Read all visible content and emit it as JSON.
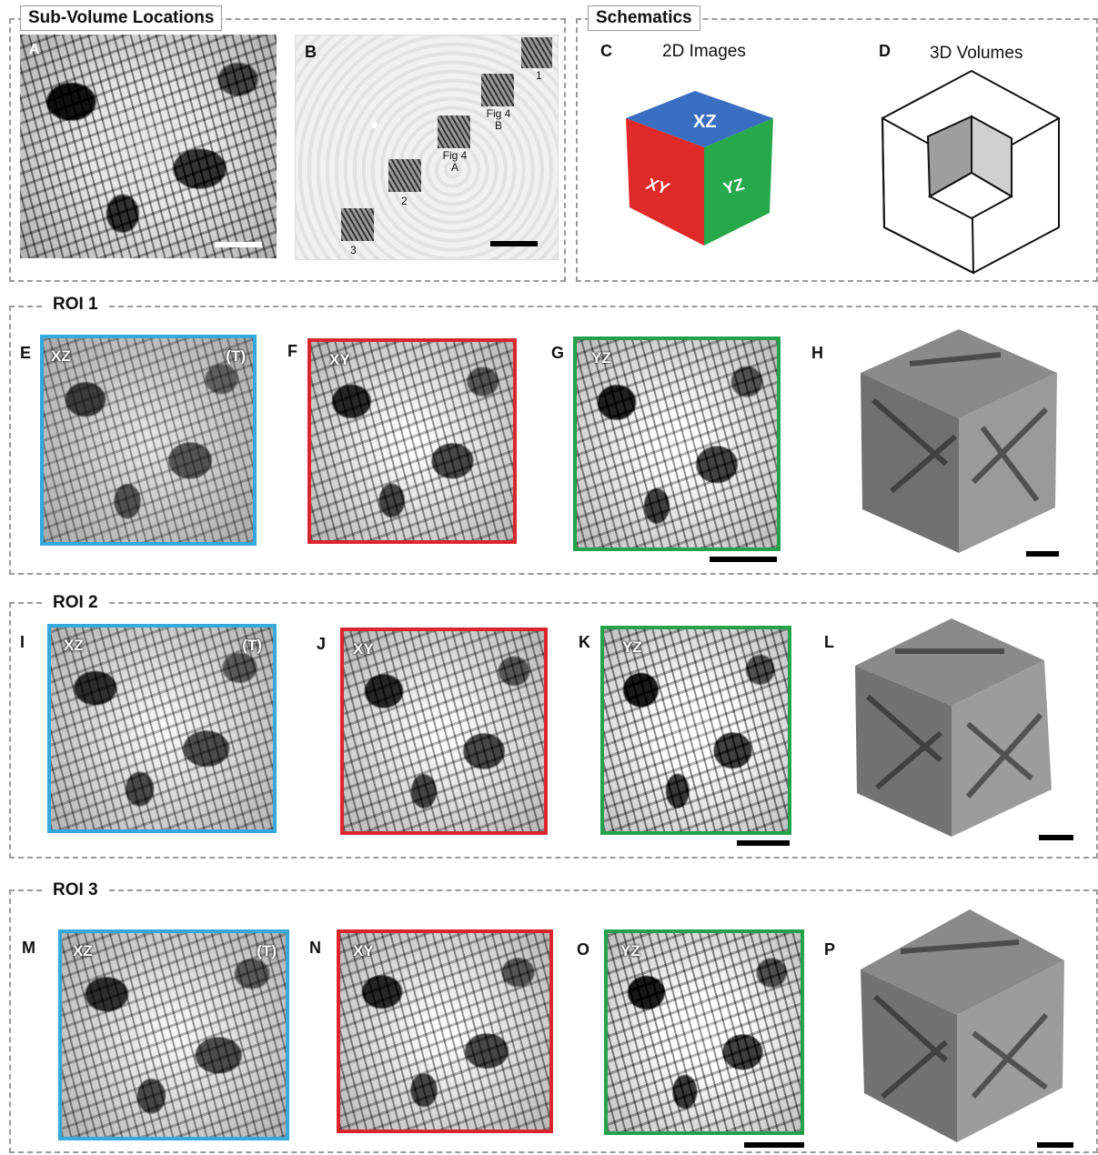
{
  "sections": {
    "subvolume": {
      "title": "Sub-Volume Locations"
    },
    "schematics": {
      "title": "Schematics"
    },
    "roi1": {
      "title": "ROI 1"
    },
    "roi2": {
      "title": "ROI 2"
    },
    "roi3": {
      "title": "ROI 3"
    }
  },
  "panels": {
    "A": "A",
    "B": "B",
    "C": "C",
    "D": "D",
    "E": "E",
    "F": "F",
    "G": "G",
    "H": "H",
    "I": "I",
    "J": "J",
    "K": "K",
    "L": "L",
    "M": "M",
    "N": "N",
    "O": "O",
    "P": "P"
  },
  "schematic": {
    "c_title": "2D Images",
    "d_title": "3D Volumes",
    "faces": {
      "xz": "XZ",
      "xy": "XY",
      "yz": "YZ"
    },
    "colors": {
      "xz": "#3a6ec0",
      "xy": "#e02a2a",
      "yz": "#27a84a"
    }
  },
  "insets": {
    "one": "1",
    "fig4b": "Fig 4\nB",
    "fig4a": "Fig 4\nA",
    "two": "2",
    "three": "3"
  },
  "overlays": {
    "xz": "XZ",
    "xy": "XY",
    "yz": "YZ",
    "t": "(T)"
  },
  "frame_colors": {
    "xz": "#35a8dc",
    "xy": "#d9262c",
    "yz": "#22a34a"
  }
}
